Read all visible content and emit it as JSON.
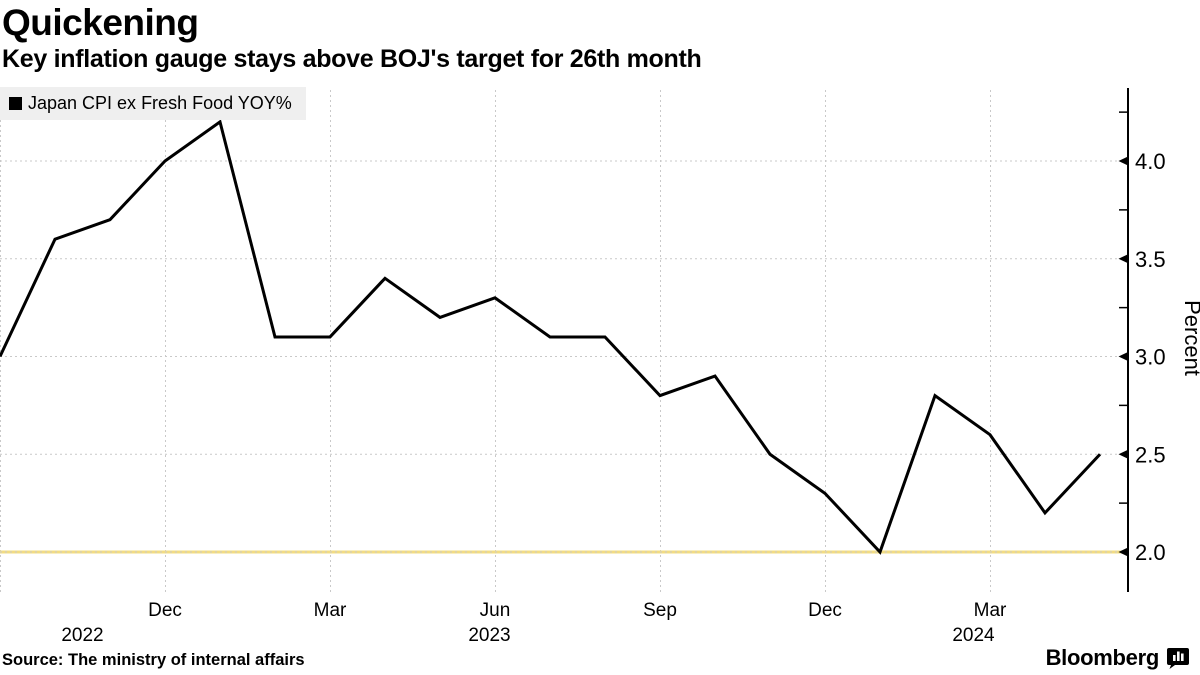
{
  "header": {
    "title": "Quickening",
    "subtitle": "Key inflation gauge stays above BOJ's target for 26th month"
  },
  "legend": {
    "label": "Japan CPI ex Fresh Food YOY%",
    "swatch_color": "#000000"
  },
  "source": "Source: The ministry of internal affairs",
  "branding": {
    "name": "Bloomberg"
  },
  "chart_data": {
    "type": "line",
    "title": "Japan CPI ex Fresh Food YOY%",
    "x": [
      "Sep 2022",
      "Oct 2022",
      "Nov 2022",
      "Dec 2022",
      "Jan 2023",
      "Feb 2023",
      "Mar 2023",
      "Apr 2023",
      "May 2023",
      "Jun 2023",
      "Jul 2023",
      "Aug 2023",
      "Sep 2023",
      "Oct 2023",
      "Nov 2023",
      "Dec 2023",
      "Jan 2024",
      "Feb 2024",
      "Mar 2024",
      "Apr 2024",
      "May 2024"
    ],
    "values": [
      3.0,
      3.6,
      3.7,
      4.0,
      4.2,
      3.1,
      3.1,
      3.4,
      3.2,
      3.3,
      3.1,
      3.1,
      2.8,
      2.9,
      2.5,
      2.3,
      2.0,
      2.8,
      2.6,
      2.2,
      2.5
    ],
    "ylabel": "Percent",
    "ylim": [
      1.8,
      4.36
    ],
    "y_ticks_major": [
      2.0,
      2.5,
      3.0,
      3.5,
      4.0
    ],
    "y_ticks_minor": [
      2.25,
      2.75,
      3.25,
      3.75,
      4.25
    ],
    "x_gridline_indices": [
      0,
      3,
      6,
      9,
      12,
      15,
      18
    ],
    "month_ticks": [
      {
        "index": 3,
        "label": "Dec"
      },
      {
        "index": 6,
        "label": "Mar"
      },
      {
        "index": 9,
        "label": "Jun"
      },
      {
        "index": 12,
        "label": "Sep"
      },
      {
        "index": 15,
        "label": "Dec"
      },
      {
        "index": 18,
        "label": "Mar"
      }
    ],
    "year_ticks": [
      {
        "index": 1.5,
        "label": "2022"
      },
      {
        "index": 8.9,
        "label": "2023"
      },
      {
        "index": 17.7,
        "label": "2024"
      }
    ],
    "target_line": {
      "value": 2.0,
      "color": "#f2dc82"
    },
    "line_color": "#000000",
    "grid_color": "#c9c9c9",
    "grid": true,
    "legend_position": "top-left",
    "axis_side": "right"
  }
}
